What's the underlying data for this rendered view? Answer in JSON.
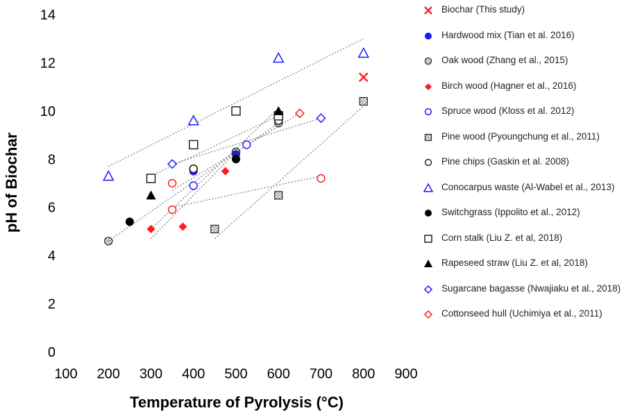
{
  "chart_data": {
    "type": "scatter",
    "xlabel": "Temperature of Pyrolysis (°C)",
    "ylabel": "pH of Biochar",
    "xlim": [
      100,
      900
    ],
    "ylim": [
      0,
      14
    ],
    "xticks": [
      100,
      200,
      300,
      400,
      500,
      600,
      700,
      800,
      900
    ],
    "yticks": [
      0,
      2,
      4,
      6,
      8,
      10,
      12,
      14
    ],
    "grid": false,
    "legend_position": "right",
    "series": [
      {
        "name": "Biochar (This study)",
        "marker": "x",
        "color": "#ff2020",
        "points": [
          [
            800,
            11.4
          ]
        ]
      },
      {
        "name": "Hardwood mix (Tian et al. 2016)",
        "marker": "circle-filled",
        "color": "#1a1aff",
        "points": [
          [
            400,
            7.5
          ],
          [
            500,
            8.2
          ]
        ]
      },
      {
        "name": "Oak wood (Zhang et al., 2015)",
        "marker": "circle-hatched",
        "color": "#333333",
        "points": [
          [
            200,
            4.6
          ],
          [
            400,
            7.6
          ],
          [
            500,
            8.3
          ],
          [
            600,
            9.5
          ]
        ]
      },
      {
        "name": "Birch wood (Hagner et al., 2016)",
        "marker": "diamond-filled",
        "color": "#ff1a1a",
        "points": [
          [
            300,
            5.1
          ],
          [
            375,
            5.2
          ],
          [
            475,
            7.5
          ]
        ]
      },
      {
        "name": "Spruce wood (Kloss et al. 2012)",
        "marker": "circle-open",
        "color": "#1a1aff",
        "points": [
          [
            400,
            6.9
          ],
          [
            525,
            8.6
          ]
        ]
      },
      {
        "name": "Pine wood (Pyoungchung et al., 2011)",
        "marker": "square-hatched",
        "color": "#222222",
        "points": [
          [
            450,
            5.1
          ],
          [
            600,
            6.5
          ],
          [
            800,
            10.4
          ]
        ]
      },
      {
        "name": "Pine chips (Gaskin et al. 2008)",
        "marker": "circle-open",
        "color": "#222222",
        "points": [
          [
            400,
            7.6
          ],
          [
            600,
            9.6
          ]
        ]
      },
      {
        "name": "Conocarpus waste (Al-Wabel et al., 2013)",
        "marker": "triangle-open",
        "color": "#1a1aff",
        "points": [
          [
            200,
            7.3
          ],
          [
            400,
            9.6
          ],
          [
            600,
            12.2
          ],
          [
            800,
            12.4
          ]
        ]
      },
      {
        "name": "Switchgrass (Ippolito et al., 2012)",
        "marker": "circle-filled",
        "color": "#000000",
        "points": [
          [
            250,
            5.4
          ],
          [
            500,
            8.0
          ]
        ]
      },
      {
        "name": "Corn stalk (Liu Z. et al, 2018)",
        "marker": "square-open",
        "color": "#222222",
        "points": [
          [
            300,
            7.2
          ],
          [
            400,
            8.6
          ],
          [
            500,
            10.0
          ],
          [
            600,
            9.8
          ]
        ]
      },
      {
        "name": "Rapeseed straw (Liu Z. et al, 2018)",
        "marker": "triangle-filled",
        "color": "#000000",
        "points": [
          [
            300,
            6.5
          ],
          [
            600,
            10.0
          ]
        ]
      },
      {
        "name": "Sugarcane bagasse (Nwajiaku et al., 2018)",
        "marker": "diamond-open",
        "color": "#1a1aff",
        "points": [
          [
            350,
            7.8
          ],
          [
            700,
            9.7
          ]
        ]
      },
      {
        "name": "Cottonseed hull (Uchimiya et al., 2011)",
        "marker": "mixed-red",
        "color": "#ff1a1a",
        "points": [
          [
            350,
            7.0
          ],
          [
            350,
            5.9
          ],
          [
            650,
            9.9
          ],
          [
            700,
            7.2
          ]
        ]
      }
    ],
    "trendlines": [
      {
        "from": [
          200,
          7.7
        ],
        "to": [
          800,
          13.0
        ]
      },
      {
        "from": [
          200,
          4.6
        ],
        "to": [
          600,
          9.5
        ]
      },
      {
        "from": [
          300,
          5.1
        ],
        "to": [
          600,
          10.1
        ]
      },
      {
        "from": [
          300,
          4.7
        ],
        "to": [
          500,
          8.3
        ]
      },
      {
        "from": [
          300,
          7.3
        ],
        "to": [
          600,
          9.8
        ]
      },
      {
        "from": [
          450,
          4.7
        ],
        "to": [
          800,
          10.2
        ]
      },
      {
        "from": [
          350,
          6.0
        ],
        "to": [
          700,
          7.3
        ]
      },
      {
        "from": [
          350,
          7.8
        ],
        "to": [
          700,
          9.7
        ]
      },
      {
        "from": [
          350,
          6.7
        ],
        "to": [
          650,
          9.9
        ]
      }
    ]
  }
}
